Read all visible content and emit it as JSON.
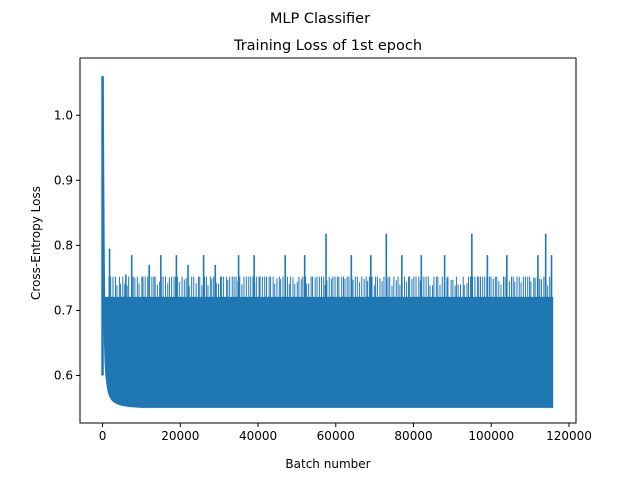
{
  "figure": {
    "suptitle": "MLP Classifier"
  },
  "chart_data": {
    "type": "line",
    "title": "Training Loss of 1st epoch",
    "xlabel": "Batch number",
    "ylabel": "Cross-Entropy Loss",
    "xlim": [
      -5800,
      121800
    ],
    "ylim": [
      0.527,
      1.088
    ],
    "xticks": [
      0,
      20000,
      40000,
      60000,
      80000,
      100000,
      120000
    ],
    "xtick_labels": [
      "0",
      "20000",
      "40000",
      "60000",
      "80000",
      "100000",
      "120000"
    ],
    "yticks": [
      0.6,
      0.7,
      0.8,
      0.9,
      1.0
    ],
    "ytick_labels": [
      "0.6",
      "0.7",
      "0.8",
      "0.9",
      "1.0"
    ],
    "grid": false,
    "series": [
      {
        "color": "#1f77b4",
        "x_max": 115800,
        "initial_curve": {
          "x": [
            0,
            100,
            200,
            300,
            400,
            600,
            800,
            1000,
            1300,
            1600,
            2000,
            2500,
            3000,
            4000,
            5000,
            7000,
            10000
          ],
          "y": [
            1.06,
            0.98,
            0.87,
            0.78,
            0.72,
            0.66,
            0.62,
            0.6,
            0.585,
            0.575,
            0.568,
            0.563,
            0.56,
            0.557,
            0.555,
            0.553,
            0.552
          ]
        },
        "band_low": 0.551,
        "band_high": 0.752,
        "dense_band_high": 0.72,
        "peaks": [
          {
            "x": 1800,
            "y": 0.795
          },
          {
            "x": 6000,
            "y": 0.755
          },
          {
            "x": 7500,
            "y": 0.785
          },
          {
            "x": 12000,
            "y": 0.77
          },
          {
            "x": 15000,
            "y": 0.785
          },
          {
            "x": 19000,
            "y": 0.785
          },
          {
            "x": 22000,
            "y": 0.77
          },
          {
            "x": 26000,
            "y": 0.785
          },
          {
            "x": 29000,
            "y": 0.77
          },
          {
            "x": 35000,
            "y": 0.785
          },
          {
            "x": 39000,
            "y": 0.785
          },
          {
            "x": 47000,
            "y": 0.785
          },
          {
            "x": 52000,
            "y": 0.785
          },
          {
            "x": 57500,
            "y": 0.818
          },
          {
            "x": 64000,
            "y": 0.785
          },
          {
            "x": 69000,
            "y": 0.785
          },
          {
            "x": 73000,
            "y": 0.818
          },
          {
            "x": 77000,
            "y": 0.785
          },
          {
            "x": 82000,
            "y": 0.785
          },
          {
            "x": 88000,
            "y": 0.785
          },
          {
            "x": 95000,
            "y": 0.818
          },
          {
            "x": 99000,
            "y": 0.785
          },
          {
            "x": 104000,
            "y": 0.785
          },
          {
            "x": 112000,
            "y": 0.785
          },
          {
            "x": 114000,
            "y": 0.818
          },
          {
            "x": 115500,
            "y": 0.785
          }
        ]
      }
    ]
  }
}
